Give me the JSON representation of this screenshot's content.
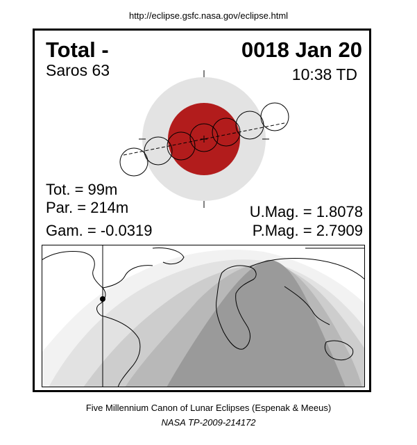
{
  "header": {
    "url": "http://eclipse.gsfc.nasa.gov/eclipse.html"
  },
  "eclipse": {
    "type": "Total  -",
    "date": "0018 Jan 20",
    "saros": "Saros  63",
    "time": "10:38 TD",
    "tot": "Tot. =  99m",
    "par": "Par. = 214m",
    "gam": "Gam. = -0.0319",
    "umag": "U.Mag. = 1.8078",
    "pmag": "P.Mag. = 2.7909"
  },
  "colors": {
    "penumbra": "#e3e3e3",
    "umbra": "#b21c1c",
    "map_zone_1": "#f2f2f2",
    "map_zone_2": "#e2e2e2",
    "map_zone_3": "#cdcdcd",
    "map_zone_4": "#b8b8b8",
    "map_total": "#9a9a9a"
  },
  "footer": {
    "canon": "Five Millennium Canon of Lunar Eclipses (Espenak & Meeus)",
    "publication": "NASA TP-2009-214172"
  }
}
